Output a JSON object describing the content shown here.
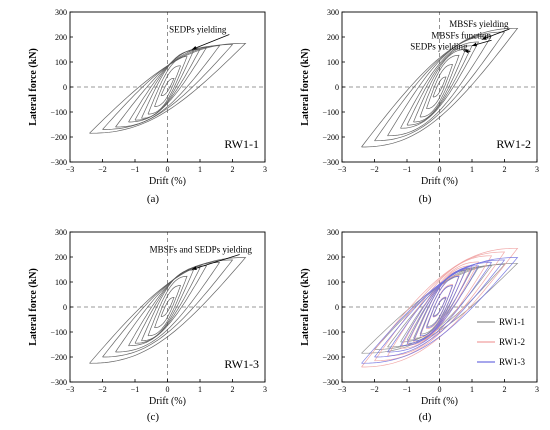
{
  "chart_data": [
    {
      "type": "line",
      "panel_label": "(a)",
      "specimen_label": "RW1-1",
      "xlabel": "Drift (%)",
      "ylabel": "Lateral force (kN)",
      "xlim": [
        -3,
        3
      ],
      "ylim": [
        -300,
        300
      ],
      "xticks": [
        "−3",
        "−2",
        "−1",
        "0",
        "1",
        "2",
        "3"
      ],
      "yticks": [
        "300",
        "200",
        "100",
        "0",
        "−100",
        "−200",
        "−300"
      ],
      "annotations": [
        {
          "text": "SEDPs yielding",
          "x": 0.05,
          "y": 218,
          "arrow_to": [
            0.75,
            150
          ]
        }
      ],
      "series": [
        {
          "color": "#555555",
          "envelope_pos": [
            [
              0.2,
              35
            ],
            [
              0.5,
              110
            ],
            [
              0.8,
              145
            ],
            [
              1.2,
              158
            ],
            [
              1.6,
              165
            ],
            [
              2.0,
              170
            ],
            [
              2.4,
              175
            ]
          ],
          "envelope_neg": [
            [
              -0.2,
              -35
            ],
            [
              -0.5,
              -100
            ],
            [
              -0.8,
              -125
            ],
            [
              -1.2,
              -140
            ],
            [
              -1.6,
              -160
            ],
            [
              -2.0,
              -170
            ],
            [
              -2.4,
              -185
            ]
          ]
        }
      ]
    },
    {
      "type": "line",
      "panel_label": "(b)",
      "specimen_label": "RW1-2",
      "xlabel": "Drift (%)",
      "ylabel": "Lateral force (kN)",
      "xlim": [
        -3,
        3
      ],
      "ylim": [
        -300,
        300
      ],
      "xticks": [
        "−3",
        "−2",
        "−1",
        "0",
        "1",
        "2",
        "3"
      ],
      "yticks": [
        "300",
        "200",
        "100",
        "0",
        "−100",
        "−200",
        "−300"
      ],
      "annotations": [
        {
          "text": "MBSFs yielding",
          "x": 0.3,
          "y": 240,
          "arrow_to": [
            1.3,
            190
          ]
        },
        {
          "text": "MBSFs function",
          "x": -0.25,
          "y": 195,
          "arrow_to": [
            1.0,
            165
          ]
        },
        {
          "text": "SEDPs yielding",
          "x": -0.9,
          "y": 150,
          "arrow_to": [
            0.75,
            145
          ]
        }
      ],
      "series": [
        {
          "color": "#555555",
          "envelope_pos": [
            [
              0.2,
              40
            ],
            [
              0.5,
              115
            ],
            [
              0.8,
              150
            ],
            [
              1.2,
              180
            ],
            [
              1.6,
              205
            ],
            [
              2.0,
              220
            ],
            [
              2.4,
              235
            ]
          ],
          "envelope_neg": [
            [
              -0.2,
              -40
            ],
            [
              -0.5,
              -110
            ],
            [
              -0.8,
              -140
            ],
            [
              -1.2,
              -165
            ],
            [
              -1.6,
              -195
            ],
            [
              -2.0,
              -215
            ],
            [
              -2.4,
              -240
            ]
          ]
        }
      ]
    },
    {
      "type": "line",
      "panel_label": "(c)",
      "specimen_label": "RW1-3",
      "xlabel": "Drift (%)",
      "ylabel": "Lateral force (kN)",
      "xlim": [
        -3,
        3
      ],
      "ylim": [
        -300,
        300
      ],
      "xticks": [
        "−3",
        "−2",
        "−1",
        "0",
        "1",
        "2",
        "3"
      ],
      "yticks": [
        "300",
        "200",
        "100",
        "0",
        "−100",
        "−200",
        "−300"
      ],
      "annotations": [
        {
          "text": "MBSFs and SEDPs yielding",
          "x": -0.55,
          "y": 218,
          "arrow_to": [
            0.75,
            150
          ]
        }
      ],
      "series": [
        {
          "color": "#555555",
          "envelope_pos": [
            [
              0.2,
              38
            ],
            [
              0.5,
              110
            ],
            [
              0.8,
              148
            ],
            [
              1.2,
              165
            ],
            [
              1.6,
              178
            ],
            [
              2.0,
              188
            ],
            [
              2.4,
              198
            ]
          ],
          "envelope_neg": [
            [
              -0.2,
              -38
            ],
            [
              -0.5,
              -105
            ],
            [
              -0.8,
              -135
            ],
            [
              -1.2,
              -155
            ],
            [
              -1.6,
              -180
            ],
            [
              -2.0,
              -200
            ],
            [
              -2.4,
              -225
            ]
          ]
        }
      ]
    },
    {
      "type": "line",
      "panel_label": "(d)",
      "specimen_label": "",
      "xlabel": "Drift (%)",
      "ylabel": "Lateral force (kN)",
      "xlim": [
        -3,
        3
      ],
      "ylim": [
        -300,
        300
      ],
      "xticks": [
        "−3",
        "−2",
        "−1",
        "0",
        "1",
        "2",
        "3"
      ],
      "yticks": [
        "300",
        "200",
        "100",
        "0",
        "−100",
        "−200",
        "−300"
      ],
      "legend_position": "bottom-right",
      "annotations": [],
      "series": [
        {
          "name": "RW1-1",
          "color": "#8a8a8a",
          "envelope_pos": [
            [
              0.2,
              35
            ],
            [
              0.5,
              110
            ],
            [
              0.8,
              145
            ],
            [
              1.2,
              158
            ],
            [
              1.6,
              165
            ],
            [
              2.0,
              170
            ],
            [
              2.4,
              175
            ]
          ],
          "envelope_neg": [
            [
              -0.2,
              -35
            ],
            [
              -0.5,
              -100
            ],
            [
              -0.8,
              -125
            ],
            [
              -1.2,
              -140
            ],
            [
              -1.6,
              -160
            ],
            [
              -2.0,
              -170
            ],
            [
              -2.4,
              -185
            ]
          ]
        },
        {
          "name": "RW1-2",
          "color": "#f0a0a0",
          "envelope_pos": [
            [
              0.2,
              40
            ],
            [
              0.5,
              115
            ],
            [
              0.8,
              150
            ],
            [
              1.2,
              180
            ],
            [
              1.6,
              205
            ],
            [
              2.0,
              220
            ],
            [
              2.4,
              235
            ]
          ],
          "envelope_neg": [
            [
              -0.2,
              -40
            ],
            [
              -0.5,
              -110
            ],
            [
              -0.8,
              -140
            ],
            [
              -1.2,
              -165
            ],
            [
              -1.6,
              -195
            ],
            [
              -2.0,
              -215
            ],
            [
              -2.4,
              -240
            ]
          ]
        },
        {
          "name": "RW1-3",
          "color": "#7070e0",
          "envelope_pos": [
            [
              0.2,
              38
            ],
            [
              0.5,
              110
            ],
            [
              0.8,
              148
            ],
            [
              1.2,
              165
            ],
            [
              1.6,
              178
            ],
            [
              2.0,
              188
            ],
            [
              2.4,
              198
            ]
          ],
          "envelope_neg": [
            [
              -0.2,
              -38
            ],
            [
              -0.5,
              -105
            ],
            [
              -0.8,
              -135
            ],
            [
              -1.2,
              -155
            ],
            [
              -1.6,
              -180
            ],
            [
              -2.0,
              -200
            ],
            [
              -2.4,
              -225
            ]
          ]
        }
      ]
    }
  ]
}
